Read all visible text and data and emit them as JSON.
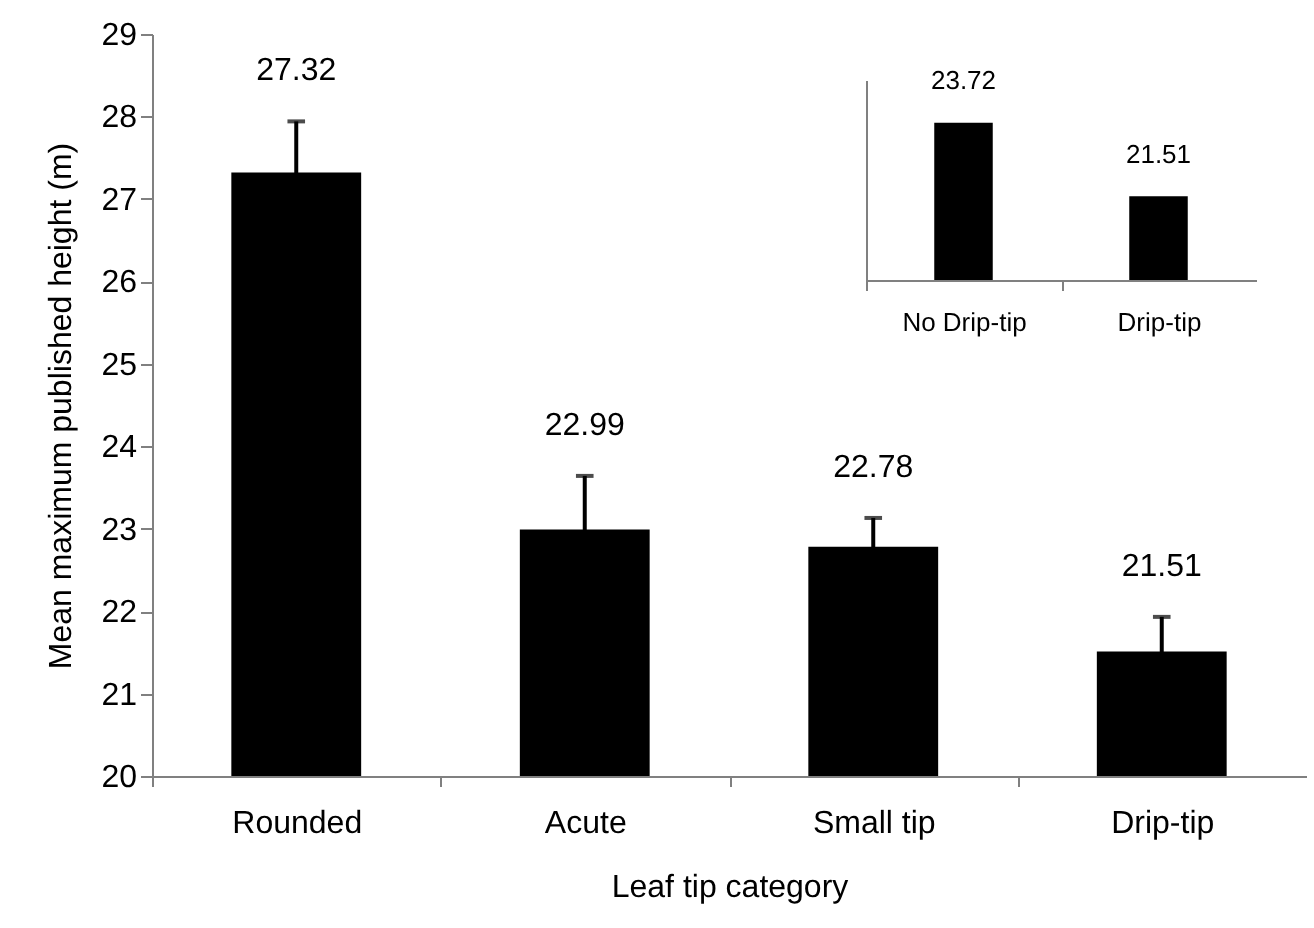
{
  "chart_data": [
    {
      "type": "bar",
      "xlabel": "Leaf tip category",
      "ylabel": "Mean maximum published height (m)",
      "categories": [
        "Rounded",
        "Acute",
        "Small tip",
        "Drip-tip"
      ],
      "values": [
        27.32,
        22.99,
        22.78,
        21.51
      ],
      "errors": [
        0.62,
        0.65,
        0.35,
        0.42
      ],
      "color": "#000000",
      "ylim": [
        20,
        29
      ],
      "yticks": [
        20,
        21,
        22,
        23,
        24,
        25,
        26,
        27,
        28,
        29
      ],
      "data_labels": true
    },
    {
      "type": "bar",
      "categories": [
        "No Drip-tip",
        "Drip-tip"
      ],
      "values": [
        23.72,
        21.51
      ],
      "color": "#000000",
      "ylim": [
        19,
        25
      ],
      "data_labels": true,
      "tick_labels": "x"
    }
  ]
}
